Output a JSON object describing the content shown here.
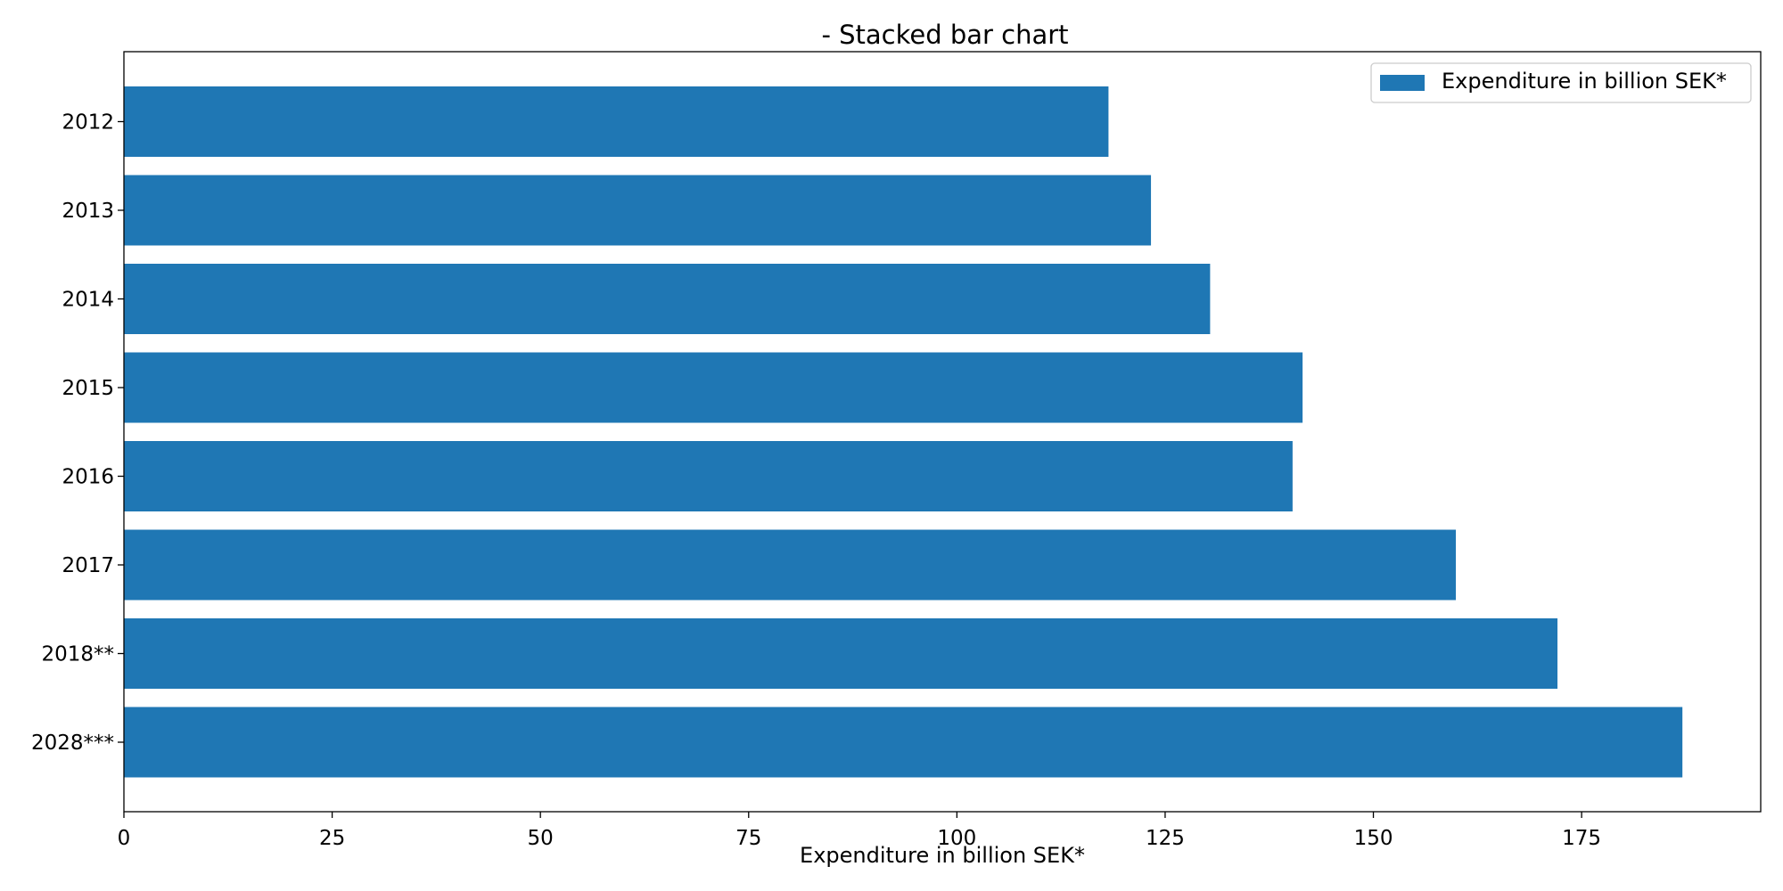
{
  "chart_data": {
    "type": "bar",
    "orientation": "horizontal",
    "title": "- Stacked bar chart",
    "xlabel": "Expenditure in billion SEK*",
    "ylabel": "",
    "categories": [
      "2012",
      "2013",
      "2014",
      "2015",
      "2016",
      "2017",
      "2018**",
      "2028***"
    ],
    "series": [
      {
        "name": "Expenditure in billion SEK*",
        "values": [
          118.2,
          123.3,
          130.4,
          141.5,
          140.3,
          159.9,
          172.1,
          187.1
        ],
        "color": "#1f77b4"
      }
    ],
    "xlim": [
      0,
      196.5
    ],
    "xticks": [
      0,
      25,
      50,
      75,
      100,
      125,
      150,
      175
    ],
    "xtick_labels": [
      "0",
      "25",
      "50",
      "75",
      "100",
      "125",
      "150",
      "175"
    ],
    "grid": false,
    "legend_position": "top-right"
  }
}
